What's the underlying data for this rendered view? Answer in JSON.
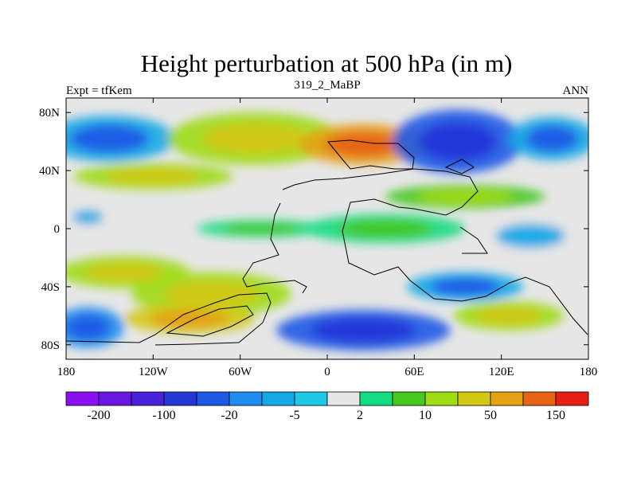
{
  "chart_data": {
    "type": "heatmap",
    "title": "Height perturbation at 500 hPa (in m)",
    "left_string": "Expt = tfKem",
    "center_string": "319_2_MaBP",
    "right_string": "ANN",
    "x_range": [
      -180,
      180
    ],
    "y_range": [
      -90,
      90
    ],
    "x_ticks": [
      {
        "value": -180,
        "label": "180"
      },
      {
        "value": -120,
        "label": "120W"
      },
      {
        "value": -60,
        "label": "60W"
      },
      {
        "value": 0,
        "label": "0"
      },
      {
        "value": 60,
        "label": "60E"
      },
      {
        "value": 120,
        "label": "120E"
      },
      {
        "value": 180,
        "label": "180"
      }
    ],
    "y_ticks": [
      {
        "value": 80,
        "label": "80N"
      },
      {
        "value": 40,
        "label": "40N"
      },
      {
        "value": 0,
        "label": "0"
      },
      {
        "value": -40,
        "label": "40S"
      },
      {
        "value": -80,
        "label": "80S"
      }
    ],
    "colorbar": {
      "colors": [
        "#8a10f0",
        "#6a18e0",
        "#4a20d8",
        "#2438d8",
        "#1e5ae6",
        "#1e8cf0",
        "#14a8e6",
        "#1ec8e6",
        "#e6e6e6",
        "#14dc82",
        "#46c81e",
        "#a0dc14",
        "#d2c814",
        "#e6a014",
        "#e66414",
        "#e61e14"
      ],
      "label_positions": [
        1,
        3,
        5,
        7,
        9,
        11,
        13,
        15
      ],
      "labels": [
        "-200",
        "-100",
        "-20",
        "-5",
        "2",
        "10",
        "50",
        "150"
      ]
    },
    "field_blobs": [
      {
        "lon": -150,
        "lat": 62,
        "rx": 45,
        "ry": 16,
        "level": -20
      },
      {
        "lon": -120,
        "lat": 36,
        "rx": 55,
        "ry": 9,
        "level": 40
      },
      {
        "lon": -50,
        "lat": 62,
        "rx": 60,
        "ry": 18,
        "level": 50
      },
      {
        "lon": 25,
        "lat": 58,
        "rx": 45,
        "ry": 14,
        "level": 150
      },
      {
        "lon": 90,
        "lat": 60,
        "rx": 45,
        "ry": 22,
        "level": -80
      },
      {
        "lon": 155,
        "lat": 62,
        "rx": 30,
        "ry": 15,
        "level": -20
      },
      {
        "lon": 95,
        "lat": 22,
        "rx": 55,
        "ry": 8,
        "level": 20
      },
      {
        "lon": -165,
        "lat": 8,
        "rx": 18,
        "ry": 8,
        "level": -5
      },
      {
        "lon": -45,
        "lat": 0,
        "rx": 45,
        "ry": 6,
        "level": 6
      },
      {
        "lon": 40,
        "lat": 0,
        "rx": 55,
        "ry": 10,
        "level": 8
      },
      {
        "lon": 140,
        "lat": -5,
        "rx": 40,
        "ry": 14,
        "level": -5
      },
      {
        "lon": -140,
        "lat": -30,
        "rx": 45,
        "ry": 11,
        "level": 50
      },
      {
        "lon": -80,
        "lat": -45,
        "rx": 55,
        "ry": 15,
        "level": 30
      },
      {
        "lon": -95,
        "lat": -62,
        "rx": 45,
        "ry": 10,
        "level": 80
      },
      {
        "lon": -165,
        "lat": -68,
        "rx": 25,
        "ry": 14,
        "level": -30
      },
      {
        "lon": 25,
        "lat": -70,
        "rx": 60,
        "ry": 14,
        "level": -80
      },
      {
        "lon": 125,
        "lat": -60,
        "rx": 38,
        "ry": 10,
        "level": 40
      },
      {
        "lon": 95,
        "lat": -40,
        "rx": 40,
        "ry": 10,
        "level": -20
      }
    ]
  }
}
